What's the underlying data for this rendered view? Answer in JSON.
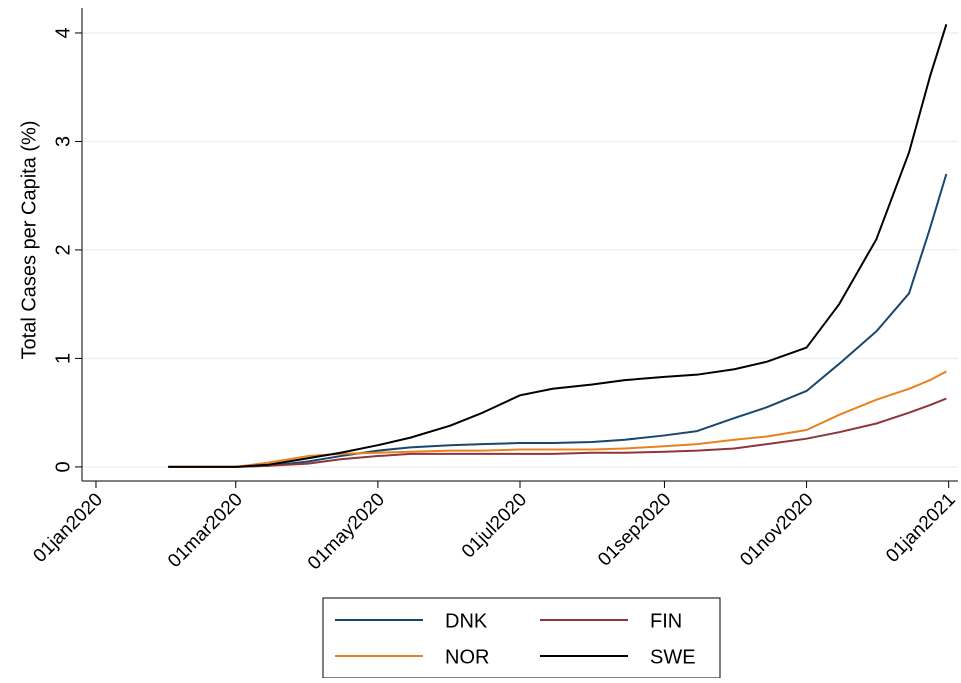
{
  "chart_data": {
    "type": "line",
    "y_label": "Total Cases per Capita (%)",
    "x": [
      "2020-02-01",
      "2020-03-01",
      "2020-03-15",
      "2020-04-01",
      "2020-04-15",
      "2020-05-01",
      "2020-05-15",
      "2020-06-01",
      "2020-06-15",
      "2020-07-01",
      "2020-07-15",
      "2020-08-01",
      "2020-08-15",
      "2020-09-01",
      "2020-09-15",
      "2020-10-01",
      "2020-10-15",
      "2020-11-01",
      "2020-11-15",
      "2020-12-01",
      "2020-12-15",
      "2020-12-24",
      "2020-12-31"
    ],
    "series": [
      {
        "name": "DNK",
        "color": "#1a476f",
        "values": [
          0,
          0,
          0.01,
          0.05,
          0.1,
          0.15,
          0.18,
          0.2,
          0.21,
          0.22,
          0.22,
          0.23,
          0.25,
          0.29,
          0.33,
          0.45,
          0.55,
          0.7,
          0.95,
          1.25,
          1.6,
          2.2,
          2.7
        ]
      },
      {
        "name": "FIN",
        "color": "#90353b",
        "values": [
          0,
          0,
          0.01,
          0.03,
          0.07,
          0.1,
          0.12,
          0.12,
          0.12,
          0.12,
          0.12,
          0.13,
          0.13,
          0.14,
          0.15,
          0.17,
          0.21,
          0.26,
          0.32,
          0.4,
          0.5,
          0.57,
          0.63
        ]
      },
      {
        "name": "NOR",
        "color": "#e8821e",
        "values": [
          0,
          0,
          0.04,
          0.1,
          0.12,
          0.13,
          0.14,
          0.15,
          0.15,
          0.16,
          0.16,
          0.16,
          0.17,
          0.19,
          0.21,
          0.25,
          0.28,
          0.34,
          0.48,
          0.62,
          0.72,
          0.8,
          0.88
        ]
      },
      {
        "name": "SWE",
        "color": "#000000",
        "values": [
          0,
          0,
          0.02,
          0.08,
          0.13,
          0.2,
          0.27,
          0.38,
          0.5,
          0.66,
          0.72,
          0.76,
          0.8,
          0.83,
          0.85,
          0.9,
          0.97,
          1.1,
          1.5,
          2.1,
          2.9,
          3.6,
          4.08
        ]
      }
    ],
    "xlim": [
      "2019-12-26",
      "2021-01-05"
    ],
    "xticks": [
      {
        "value": "2020-01-01",
        "label": "01jan2020"
      },
      {
        "value": "2020-03-01",
        "label": "01mar2020"
      },
      {
        "value": "2020-05-01",
        "label": "01may2020"
      },
      {
        "value": "2020-07-01",
        "label": "01jul2020"
      },
      {
        "value": "2020-09-01",
        "label": "01sep2020"
      },
      {
        "value": "2020-11-01",
        "label": "01nov2020"
      },
      {
        "value": "2021-01-01",
        "label": "01jan2021"
      }
    ],
    "ylim": [
      -0.13,
      4.23
    ],
    "yticks": [
      0,
      1,
      2,
      3,
      4
    ],
    "grid": true,
    "legend": "bottom"
  }
}
